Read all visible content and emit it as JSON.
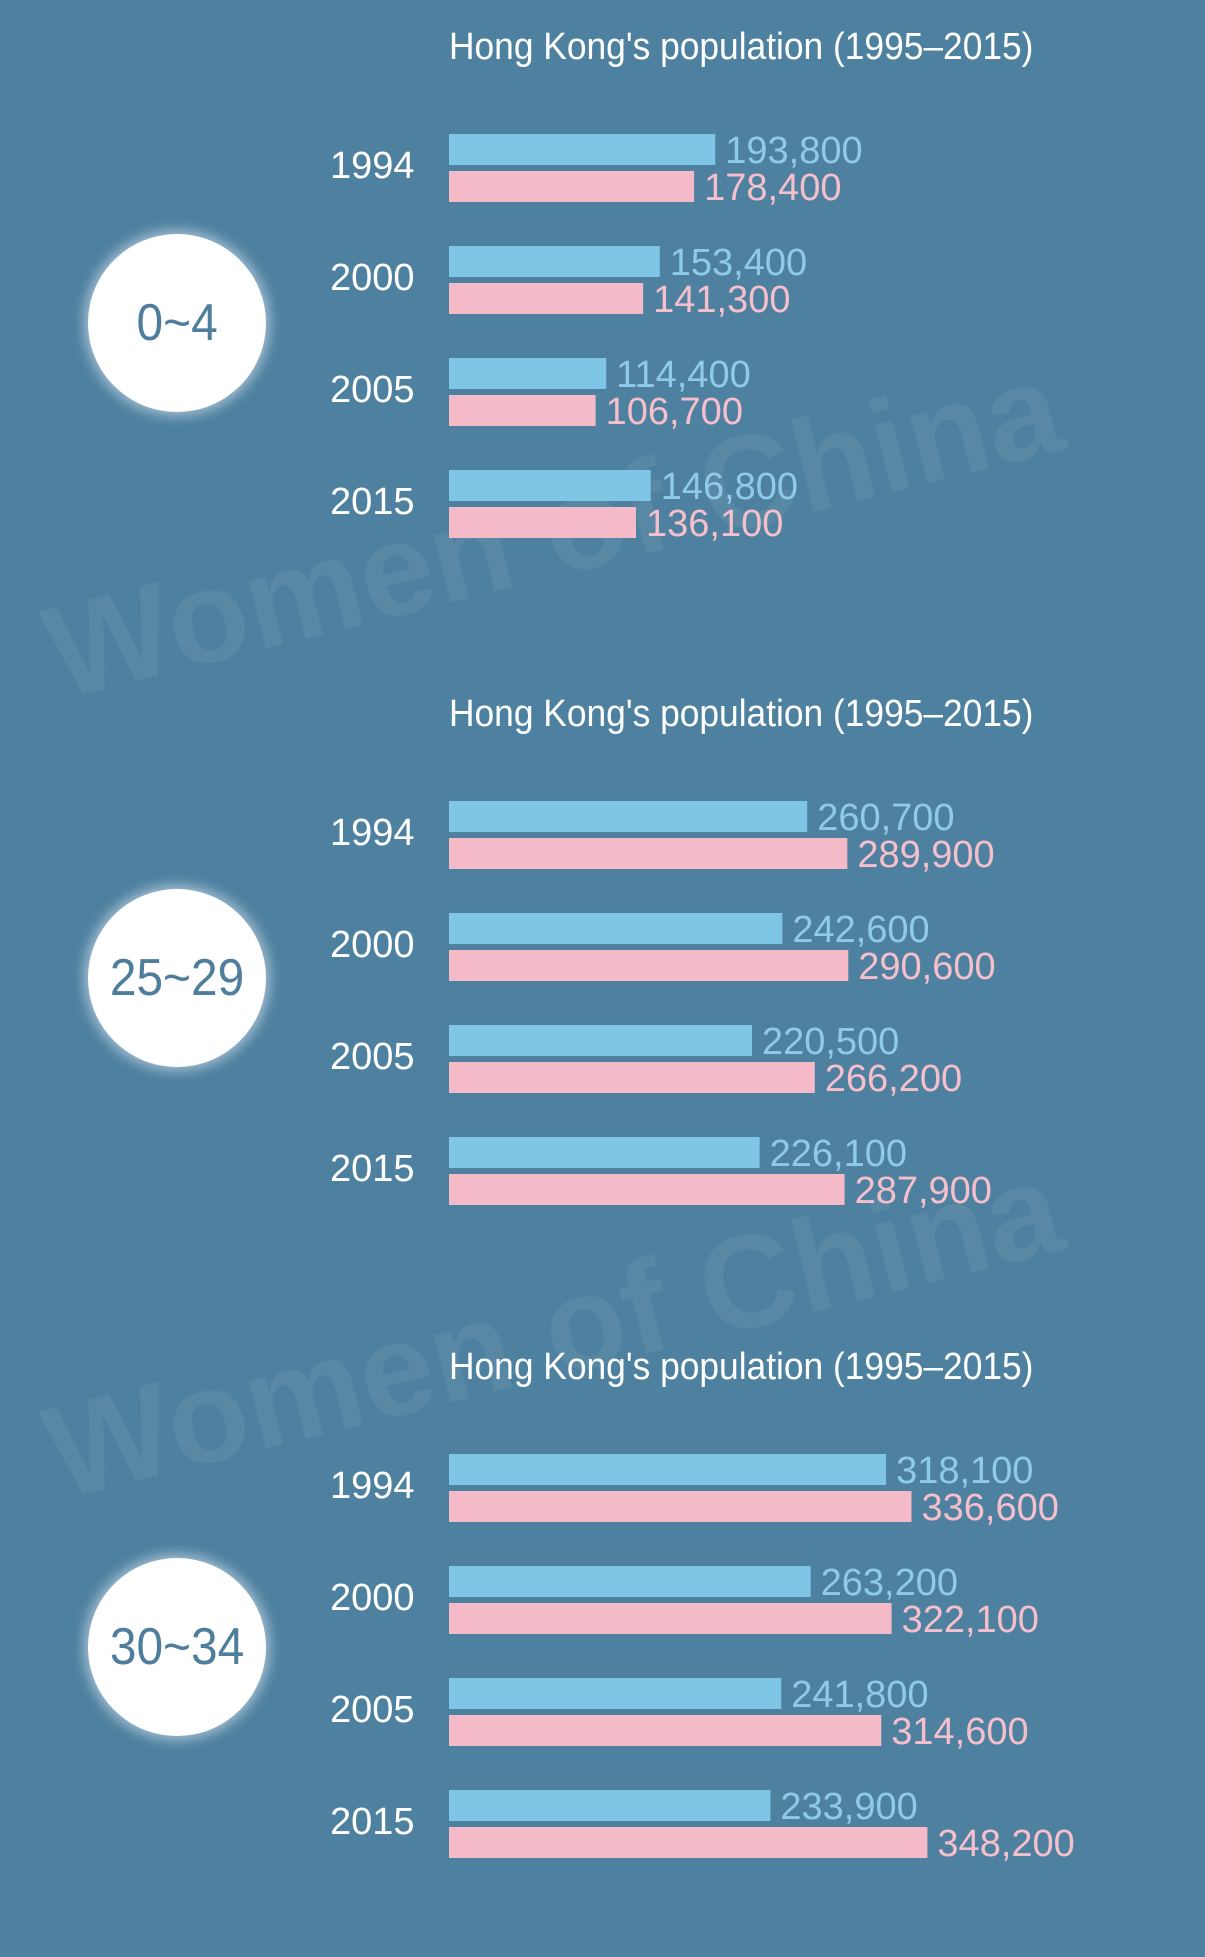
{
  "colors": {
    "background": "#4e819f",
    "male_bar": "#7fc5e6",
    "female_bar": "#f4bac8",
    "male_label": "#8fcbe8",
    "female_label": "#f6bfcc",
    "badge_text": "#4e7e9c",
    "year_text": "#ffffff"
  },
  "watermark": "Women of China",
  "chart_data": [
    {
      "type": "bar",
      "title": "Hong Kong's population (1995–2015)",
      "group_label": "0~4",
      "categories": [
        "1994",
        "2000",
        "2005",
        "2015"
      ],
      "series": [
        {
          "values": [
            193800,
            153400,
            114400,
            146800
          ]
        },
        {
          "values": [
            178400,
            141300,
            106700,
            136100
          ]
        }
      ],
      "value_labels": [
        [
          "193,800",
          "153,400",
          "114,400",
          "146,800"
        ],
        [
          "178,400",
          "141,300",
          "106,700",
          "136,100"
        ]
      ]
    },
    {
      "type": "bar",
      "title": "Hong Kong's population (1995–2015)",
      "group_label": "25~29",
      "categories": [
        "1994",
        "2000",
        "2005",
        "2015"
      ],
      "series": [
        {
          "values": [
            260700,
            242600,
            220500,
            226100
          ]
        },
        {
          "values": [
            289900,
            290600,
            266200,
            287900
          ]
        }
      ],
      "value_labels": [
        [
          "260,700",
          "242,600",
          "220,500",
          "226,100"
        ],
        [
          "289,900",
          "290,600",
          "266,200",
          "287,900"
        ]
      ]
    },
    {
      "type": "bar",
      "title": "Hong Kong's population (1995–2015)",
      "group_label": "30~34",
      "categories": [
        "1994",
        "2000",
        "2005",
        "2015"
      ],
      "series": [
        {
          "values": [
            318100,
            263200,
            241800,
            233900
          ]
        },
        {
          "values": [
            336600,
            322100,
            314600,
            348200
          ]
        }
      ],
      "value_labels": [
        [
          "318,100",
          "263,200",
          "241,800",
          "233,900"
        ],
        [
          "336,600",
          "322,100",
          "314,600",
          "348,200"
        ]
      ]
    }
  ]
}
